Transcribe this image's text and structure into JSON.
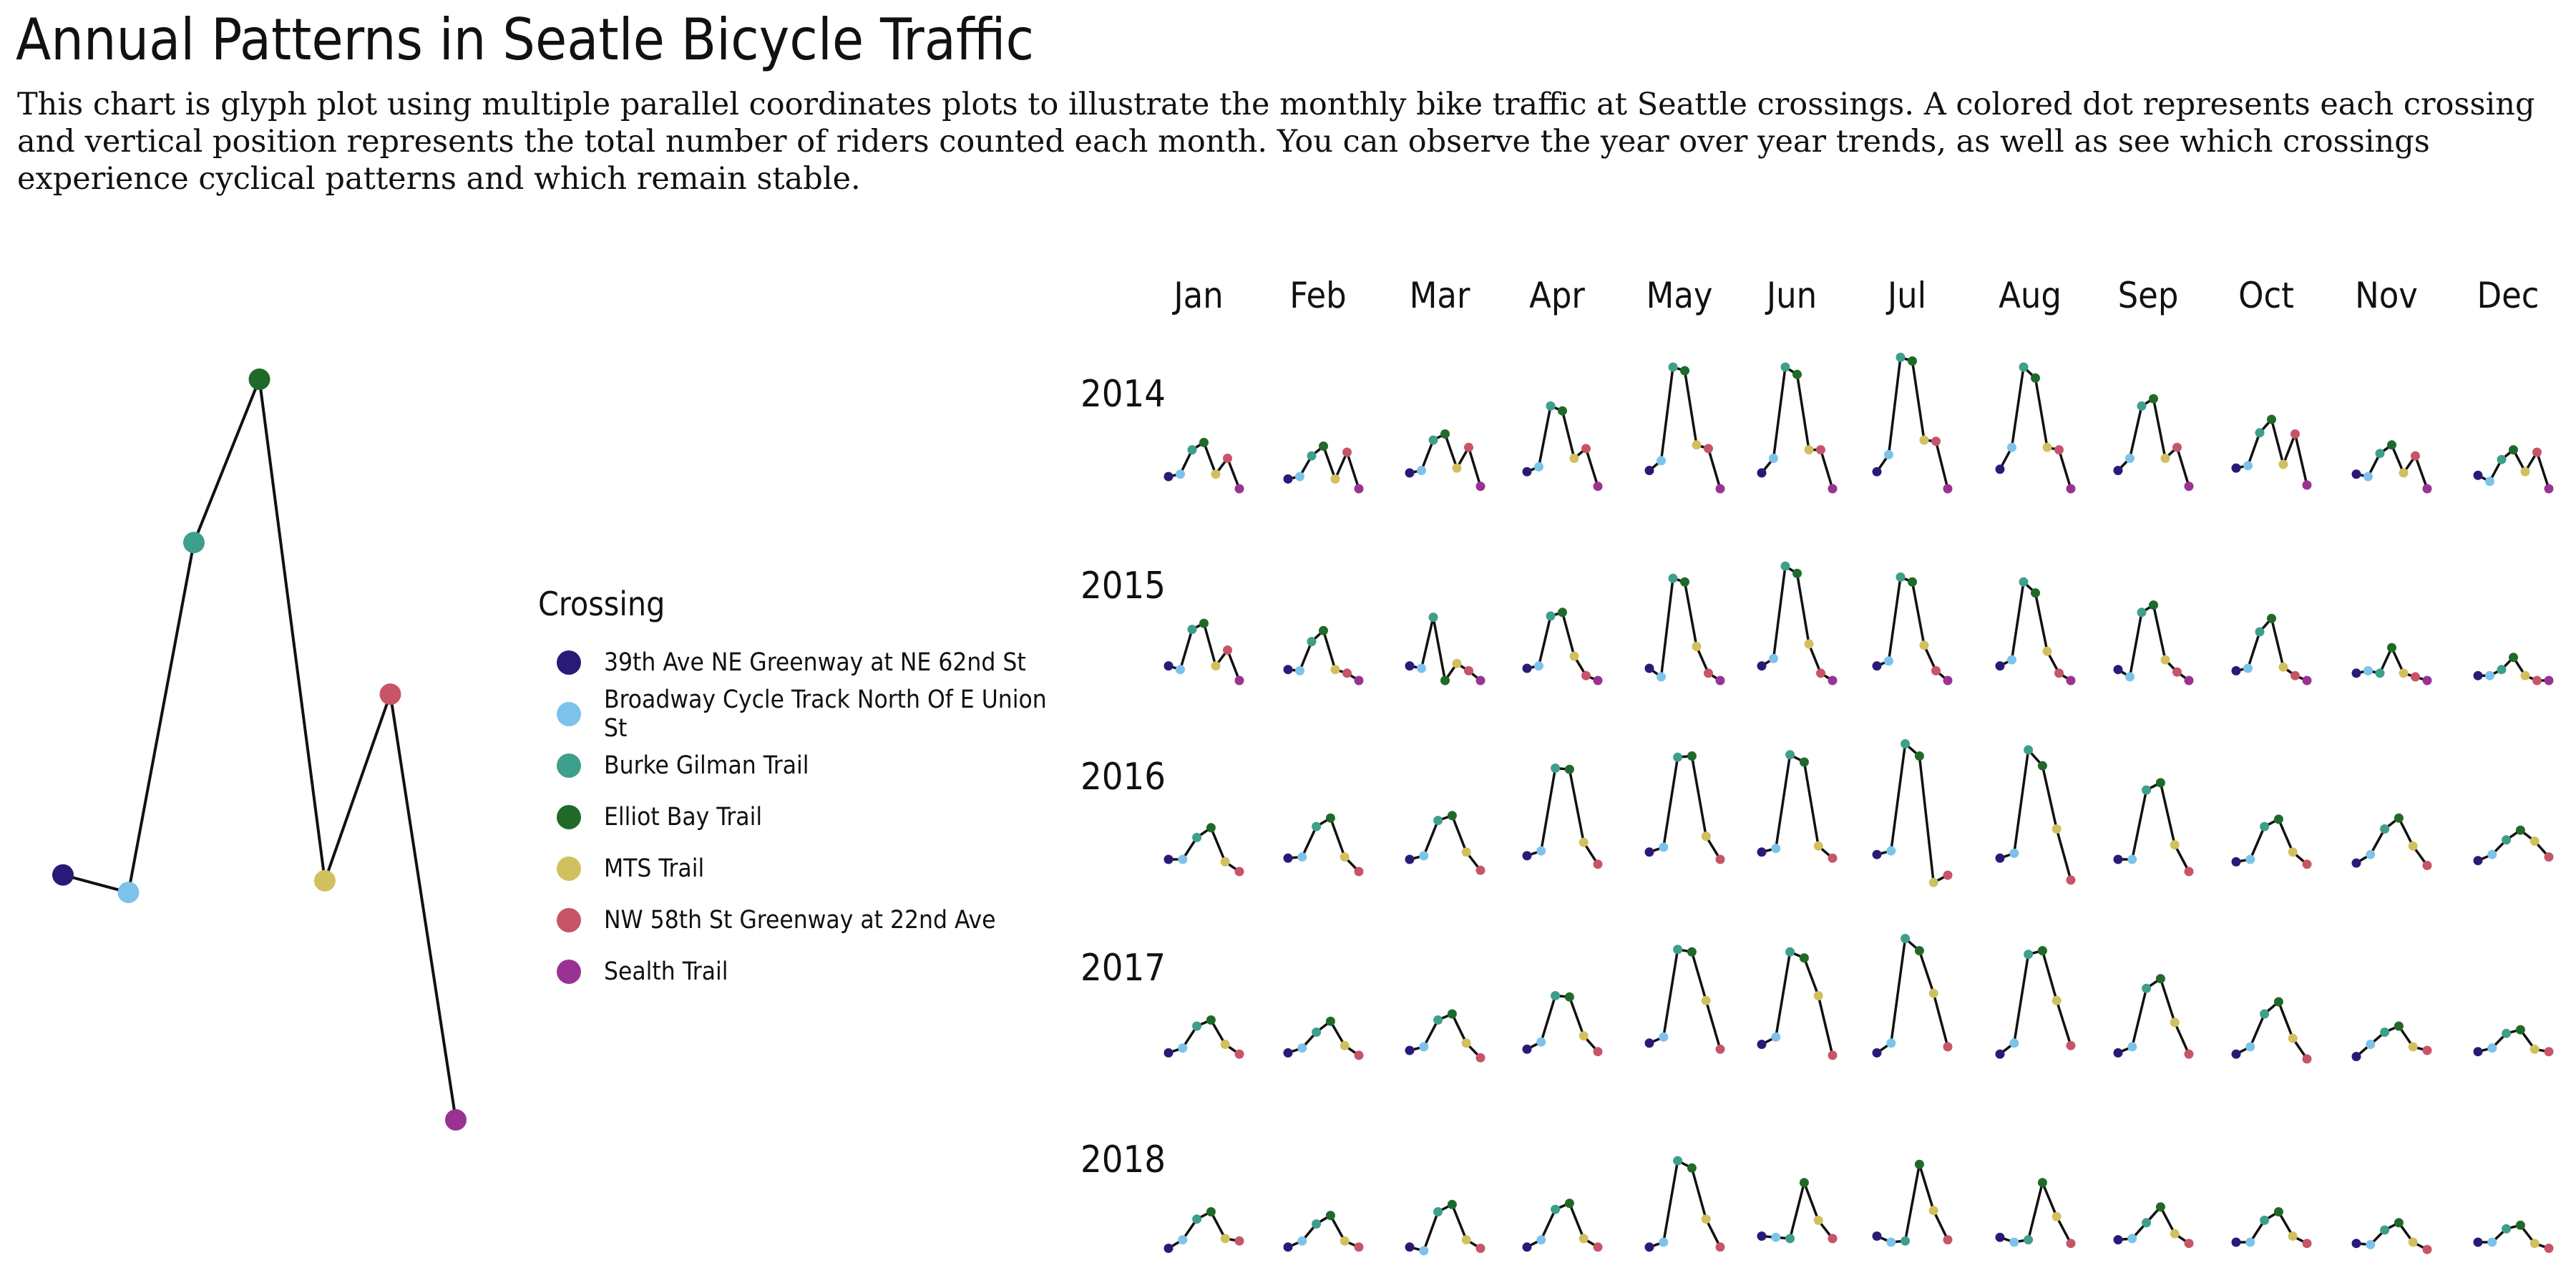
{
  "title": "Annual Patterns in Seatle Bicycle Traffic",
  "subtitle": "This chart is glyph plot using multiple parallel coordinates plots to illustrate the monthly bike traffic at Seattle crossings. A colored dot represents each crossing and vertical position represents the total number of riders counted each month. You can observe the year over year trends, as well as see which crossings experience cyclical patterns and which remain stable.",
  "legend": {
    "title": "Crossing",
    "items": [
      {
        "label": "39th Ave NE Greenway at NE 62nd St",
        "color": "#2a1a78"
      },
      {
        "label": "Broadway Cycle Track North Of E Union St",
        "color": "#7cc3eb"
      },
      {
        "label": "Burke Gilman Trail",
        "color": "#3e9f8a"
      },
      {
        "label": "Elliot Bay Trail",
        "color": "#1f6a28"
      },
      {
        "label": "MTS Trail",
        "color": "#d2c05f"
      },
      {
        "label": "NW 58th St Greenway at 22nd Ave",
        "color": "#c85468"
      },
      {
        "label": "Sealth Trail",
        "color": "#9a3294"
      }
    ]
  },
  "chart_data": {
    "type": "line",
    "note_crossings_order": [
      "39th Ave NE Greenway at NE 62nd St",
      "Broadway Cycle Track North Of E Union St",
      "Burke Gilman Trail",
      "Elliot Bay Trail",
      "MTS Trail",
      "NW 58th St Greenway at 22nd Ave",
      "Sealth Trail"
    ],
    "months": [
      "Jan",
      "Feb",
      "Mar",
      "Apr",
      "May",
      "Jun",
      "Jul",
      "Aug",
      "Sep",
      "Oct",
      "Nov",
      "Dec"
    ],
    "years": [
      "2014",
      "2015",
      "2016",
      "2017",
      "2018"
    ],
    "example_glyph": {
      "values": [
        0.15,
        0.12,
        0.72,
        1.0,
        0.14,
        0.46,
        -0.27
      ]
    },
    "glyphs": {
      "2014": [
        [
          0.1,
          0.12,
          0.32,
          0.38,
          0.12,
          0.25,
          0.0
        ],
        [
          0.08,
          0.1,
          0.27,
          0.35,
          0.08,
          0.3,
          0.0
        ],
        [
          0.13,
          0.15,
          0.4,
          0.45,
          0.17,
          0.34,
          0.02
        ],
        [
          0.14,
          0.18,
          0.68,
          0.64,
          0.25,
          0.33,
          0.02
        ],
        [
          0.15,
          0.23,
          1.0,
          0.97,
          0.36,
          0.33,
          0.0
        ],
        [
          0.13,
          0.25,
          1.0,
          0.94,
          0.32,
          0.32,
          0.0
        ],
        [
          0.14,
          0.28,
          1.08,
          1.05,
          0.4,
          0.39,
          0.0
        ],
        [
          0.16,
          0.34,
          1.0,
          0.91,
          0.34,
          0.32,
          0.0
        ],
        [
          0.15,
          0.25,
          0.68,
          0.74,
          0.25,
          0.34,
          0.02
        ],
        [
          0.17,
          0.19,
          0.46,
          0.57,
          0.2,
          0.45,
          0.03
        ],
        [
          0.12,
          0.1,
          0.29,
          0.36,
          0.13,
          0.27,
          0.0
        ],
        [
          0.11,
          0.06,
          0.24,
          0.32,
          0.14,
          0.3,
          0.0
        ]
      ],
      "2015": [
        [
          0.12,
          0.09,
          0.42,
          0.47,
          0.12,
          0.25,
          0.0
        ],
        [
          0.09,
          0.08,
          0.32,
          0.41,
          0.09,
          0.06,
          0.0
        ],
        [
          0.12,
          0.1,
          0.52,
          0.0,
          0.14,
          0.08,
          0.0
        ],
        [
          0.1,
          0.12,
          0.53,
          0.56,
          0.2,
          0.04,
          0.0
        ],
        [
          0.1,
          0.03,
          0.84,
          0.81,
          0.28,
          0.06,
          0.0
        ],
        [
          0.12,
          0.18,
          0.94,
          0.88,
          0.3,
          0.06,
          0.0
        ],
        [
          0.12,
          0.16,
          0.85,
          0.81,
          0.29,
          0.08,
          0.0
        ],
        [
          0.12,
          0.17,
          0.81,
          0.72,
          0.24,
          0.06,
          0.0
        ],
        [
          0.09,
          0.03,
          0.56,
          0.62,
          0.17,
          0.07,
          0.0
        ],
        [
          0.08,
          0.1,
          0.4,
          0.51,
          0.11,
          0.04,
          0.0
        ],
        [
          0.06,
          0.08,
          0.06,
          0.27,
          0.06,
          0.03,
          0.0
        ],
        [
          0.04,
          0.04,
          0.09,
          0.19,
          0.04,
          0.0,
          0.0
        ]
      ],
      "2016": [
        [
          0.1,
          0.1,
          0.28,
          0.36,
          0.08,
          0.0
        ],
        [
          0.11,
          0.12,
          0.37,
          0.44,
          0.12,
          0.0
        ],
        [
          0.1,
          0.13,
          0.42,
          0.46,
          0.16,
          0.01
        ],
        [
          0.13,
          0.17,
          0.85,
          0.84,
          0.24,
          0.06
        ],
        [
          0.16,
          0.2,
          0.94,
          0.95,
          0.29,
          0.1
        ],
        [
          0.16,
          0.19,
          0.96,
          0.9,
          0.21,
          0.11
        ],
        [
          0.14,
          0.17,
          1.05,
          0.95,
          -0.09,
          -0.03
        ],
        [
          0.11,
          0.15,
          1.0,
          0.87,
          0.35,
          -0.07
        ],
        [
          0.1,
          0.1,
          0.67,
          0.73,
          0.22,
          0.0
        ],
        [
          0.08,
          0.1,
          0.37,
          0.43,
          0.16,
          0.06
        ],
        [
          0.07,
          0.14,
          0.35,
          0.44,
          0.21,
          0.05
        ],
        [
          0.09,
          0.14,
          0.26,
          0.34,
          0.25,
          0.12
        ]
      ],
      "2017": [
        [
          0.08,
          0.12,
          0.3,
          0.35,
          0.15,
          0.07
        ],
        [
          0.08,
          0.12,
          0.25,
          0.34,
          0.14,
          0.06
        ],
        [
          0.1,
          0.13,
          0.35,
          0.4,
          0.16,
          0.04
        ],
        [
          0.11,
          0.17,
          0.55,
          0.54,
          0.22,
          0.09
        ],
        [
          0.16,
          0.21,
          0.93,
          0.91,
          0.51,
          0.11
        ],
        [
          0.15,
          0.21,
          0.91,
          0.86,
          0.55,
          0.06
        ],
        [
          0.08,
          0.16,
          1.02,
          0.92,
          0.57,
          0.13
        ],
        [
          0.07,
          0.16,
          0.89,
          0.92,
          0.51,
          0.14
        ],
        [
          0.08,
          0.13,
          0.61,
          0.69,
          0.33,
          0.07
        ],
        [
          0.07,
          0.13,
          0.4,
          0.5,
          0.2,
          0.03
        ],
        [
          0.05,
          0.15,
          0.25,
          0.3,
          0.13,
          0.1
        ],
        [
          0.09,
          0.12,
          0.24,
          0.27,
          0.11,
          0.09
        ]
      ],
      "2018": [
        [
          0.05,
          0.12,
          0.29,
          0.35,
          0.13,
          0.11
        ],
        [
          0.06,
          0.11,
          0.25,
          0.32,
          0.11,
          0.06
        ],
        [
          0.06,
          0.03,
          0.35,
          0.41,
          0.12,
          0.05
        ],
        [
          0.06,
          0.12,
          0.37,
          0.42,
          0.13,
          0.06
        ],
        [
          0.06,
          0.1,
          0.77,
          0.71,
          0.29,
          0.06
        ],
        [
          0.15,
          0.14,
          0.13,
          0.59,
          0.28,
          0.13
        ],
        [
          0.15,
          0.1,
          0.11,
          0.74,
          0.36,
          0.12
        ],
        [
          0.14,
          0.1,
          0.12,
          0.59,
          0.31,
          0.09
        ],
        [
          0.12,
          0.13,
          0.26,
          0.39,
          0.17,
          0.09
        ],
        [
          0.1,
          0.1,
          0.28,
          0.35,
          0.15,
          0.09
        ],
        [
          0.09,
          0.08,
          0.2,
          0.26,
          0.1,
          0.04
        ],
        [
          0.1,
          0.1,
          0.21,
          0.24,
          0.09,
          0.05
        ]
      ]
    },
    "grid": false,
    "legend_position": "left-center"
  }
}
